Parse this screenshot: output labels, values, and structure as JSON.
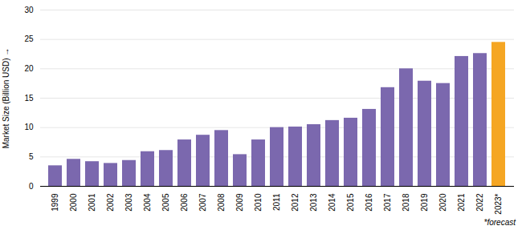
{
  "chart_data": {
    "type": "bar",
    "categories": [
      "1999",
      "2000",
      "2001",
      "2002",
      "2003",
      "2004",
      "2005",
      "2006",
      "2007",
      "2008",
      "2009",
      "2010",
      "2011",
      "2012",
      "2013",
      "2014",
      "2015",
      "2016",
      "2017",
      "2018",
      "2019",
      "2020",
      "2021",
      "2022",
      "2023*"
    ],
    "values": [
      3.5,
      4.6,
      4.2,
      3.9,
      4.4,
      5.9,
      6.1,
      7.9,
      8.7,
      9.5,
      5.4,
      7.9,
      10.0,
      10.1,
      10.5,
      11.2,
      11.6,
      13.1,
      16.8,
      20.0,
      17.9,
      17.5,
      22.1,
      22.6,
      24.5
    ],
    "colors": [
      "#7B68AE",
      "#7B68AE",
      "#7B68AE",
      "#7B68AE",
      "#7B68AE",
      "#7B68AE",
      "#7B68AE",
      "#7B68AE",
      "#7B68AE",
      "#7B68AE",
      "#7B68AE",
      "#7B68AE",
      "#7B68AE",
      "#7B68AE",
      "#7B68AE",
      "#7B68AE",
      "#7B68AE",
      "#7B68AE",
      "#7B68AE",
      "#7B68AE",
      "#7B68AE",
      "#7B68AE",
      "#7B68AE",
      "#7B68AE",
      "#F5A623"
    ],
    "ylabel": "Market Size (Billion USD)",
    "ylim": [
      0,
      30
    ],
    "yticks": [
      0,
      5,
      10,
      15,
      20,
      25,
      30
    ],
    "grid": true,
    "annotation": "*forecast"
  }
}
